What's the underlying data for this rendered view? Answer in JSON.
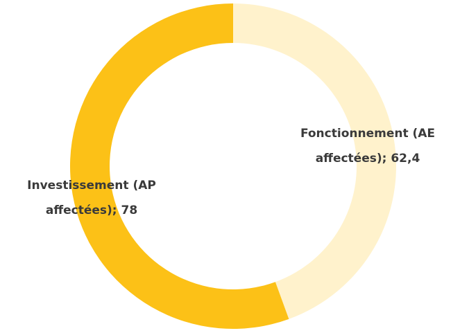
{
  "chart_data": {
    "type": "pie",
    "donut": true,
    "title": "",
    "slices": [
      {
        "label_lines": [
          "Fonctionnement  (AE",
          "affectées);  62,4"
        ],
        "value": 62.4,
        "color": "#FFF2CC"
      },
      {
        "label_lines": [
          "Investissement (AP",
          "affectées); 78"
        ],
        "value": 78,
        "color": "#FCC117"
      }
    ],
    "start_angle_deg": 0,
    "direction": "clockwise",
    "legend": "none"
  }
}
